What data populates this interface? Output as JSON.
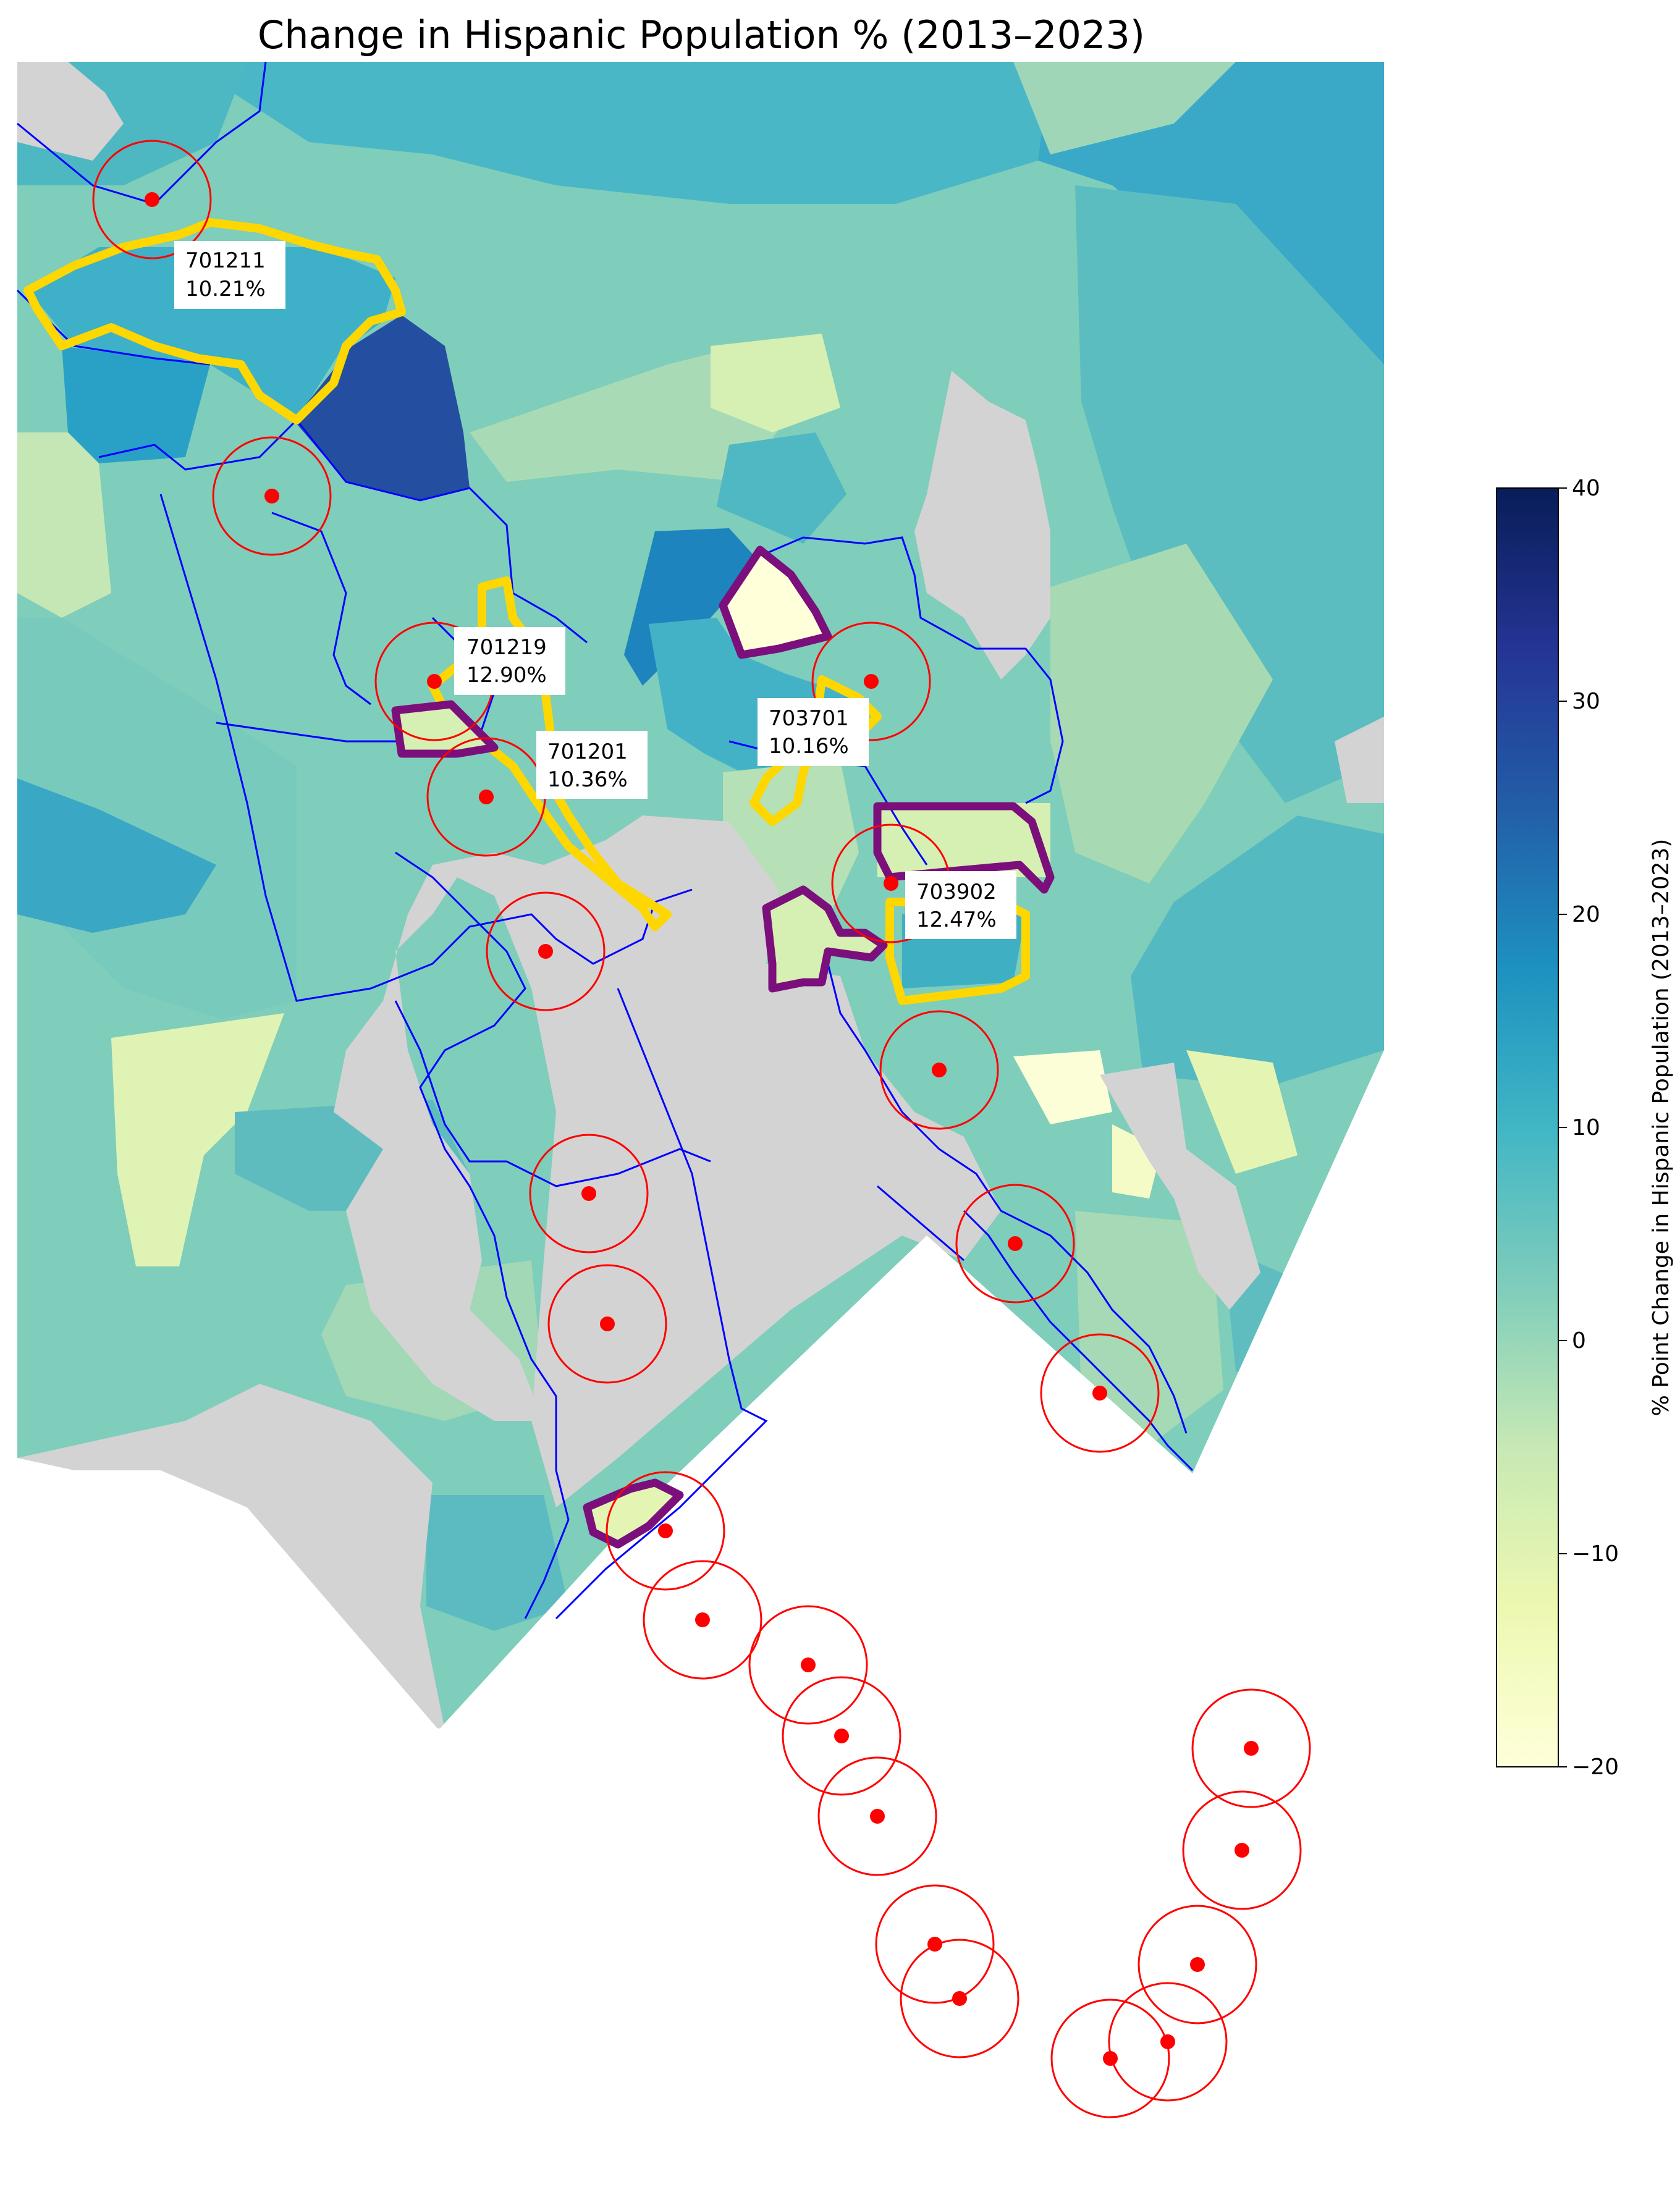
{
  "title": "Change in Hispanic Population % (2013–2023)",
  "colorbar": {
    "label": "% Point Change in Hispanic Population (2013–2023)",
    "min": -20,
    "max": 40,
    "ticks": [
      "40",
      "30",
      "20",
      "10",
      "0",
      "−10",
      "−20"
    ],
    "tick_values": [
      40,
      30,
      20,
      10,
      0,
      -10,
      -20
    ],
    "colormap": "YlGnBu",
    "stops": [
      "#ffffd9",
      "#edf8b1",
      "#c7e9b4",
      "#7fcdbb",
      "#41b6c4",
      "#1d91c0",
      "#225ea8",
      "#253494",
      "#081d58"
    ]
  },
  "legend_colors": {
    "no_data": "#d3d3d3",
    "boundary": "#0000ff",
    "highlight_increase": "#ffd700",
    "highlight_decrease": "#7b0f7b",
    "marker": "#ff0000"
  },
  "labels": [
    {
      "id": "701211",
      "value": "10.21%"
    },
    {
      "id": "701219",
      "value": "12.90%"
    },
    {
      "id": "701201",
      "value": "10.36%"
    },
    {
      "id": "703701",
      "value": "10.16%"
    },
    {
      "id": "703902",
      "value": "12.47%"
    }
  ]
}
